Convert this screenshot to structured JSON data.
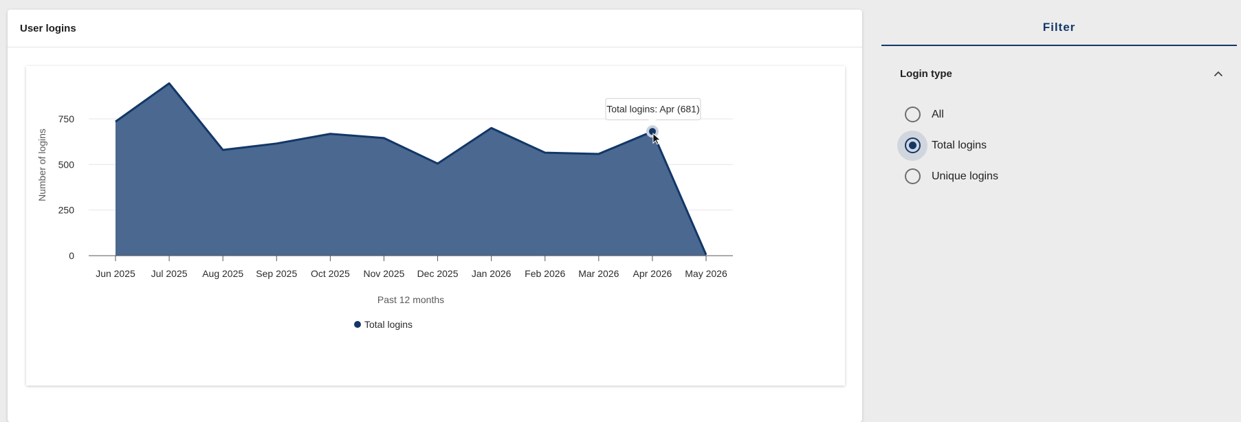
{
  "card": {
    "title": "User logins"
  },
  "filter": {
    "title": "Filter",
    "section": "Login type",
    "options": [
      {
        "label": "All",
        "checked": false
      },
      {
        "label": "Total logins",
        "checked": true
      },
      {
        "label": "Unique logins",
        "checked": false
      }
    ]
  },
  "colors": {
    "series": "#123767",
    "area": "#4a6890",
    "accent": "#123767"
  },
  "tooltip": {
    "text": "Total logins: Apr (681)",
    "index": 10
  },
  "chart_data": {
    "type": "area",
    "categories": [
      "Jun 2025",
      "Jul 2025",
      "Aug 2025",
      "Sep 2025",
      "Oct 2025",
      "Nov 2025",
      "Dec 2025",
      "Jan 2026",
      "Feb 2026",
      "Mar 2026",
      "Apr 2026",
      "May 2026"
    ],
    "series": [
      {
        "name": "Total logins",
        "values": [
          735,
          945,
          580,
          615,
          668,
          645,
          505,
          700,
          565,
          558,
          681,
          5
        ]
      }
    ],
    "xlabel": "Past 12 months",
    "ylabel": "Number of logins",
    "yticks": [
      0,
      250,
      500,
      750
    ],
    "ylim": [
      0,
      1000
    ],
    "grid": true,
    "legend": "bottom"
  }
}
